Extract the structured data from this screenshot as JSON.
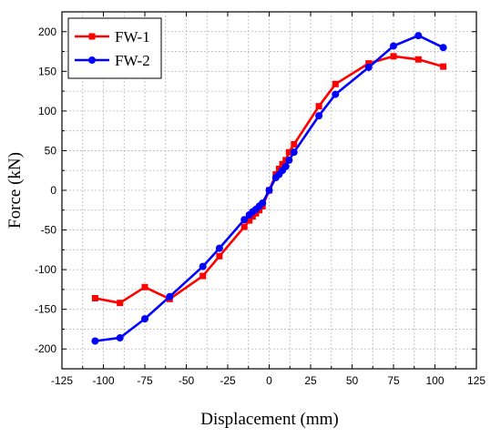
{
  "chart_data": {
    "type": "line",
    "title": "",
    "xlabel": "Displacement (mm)",
    "ylabel": "Force (kN)",
    "xlim": [
      -125,
      125
    ],
    "ylim": [
      -225,
      225
    ],
    "xticks": [
      -125,
      -100,
      -75,
      -50,
      -25,
      0,
      25,
      50,
      75,
      100,
      125
    ],
    "yticks": [
      -200,
      -150,
      -100,
      -50,
      0,
      50,
      100,
      150,
      200
    ],
    "grid": true,
    "legend_position": "top-left",
    "series": [
      {
        "name": "FW-1",
        "color": "#ff0000",
        "marker": "square",
        "x": [
          -105,
          -90,
          -75,
          -60,
          -40,
          -30,
          -15,
          -12,
          -10,
          -8,
          -6,
          -4,
          0,
          4,
          6,
          8,
          10,
          12,
          15,
          30,
          40,
          60,
          75,
          90,
          105
        ],
        "y": [
          -136,
          -142,
          -122,
          -137,
          -108,
          -83,
          -46,
          -38,
          -33,
          -29,
          -25,
          -20,
          0,
          20,
          27,
          33,
          38,
          48,
          58,
          106,
          134,
          160,
          169,
          165,
          156
        ]
      },
      {
        "name": "FW-2",
        "color": "#0000ff",
        "marker": "circle",
        "x": [
          -105,
          -90,
          -75,
          -60,
          -40,
          -30,
          -15,
          -12,
          -10,
          -8,
          -6,
          -4,
          0,
          4,
          6,
          8,
          10,
          12,
          15,
          30,
          40,
          60,
          75,
          90,
          105
        ],
        "y": [
          -190,
          -186,
          -162,
          -134,
          -96,
          -73,
          -37,
          -31,
          -27,
          -24,
          -20,
          -16,
          0,
          16,
          20,
          25,
          30,
          38,
          48,
          94,
          121,
          155,
          182,
          195,
          180
        ]
      }
    ]
  }
}
